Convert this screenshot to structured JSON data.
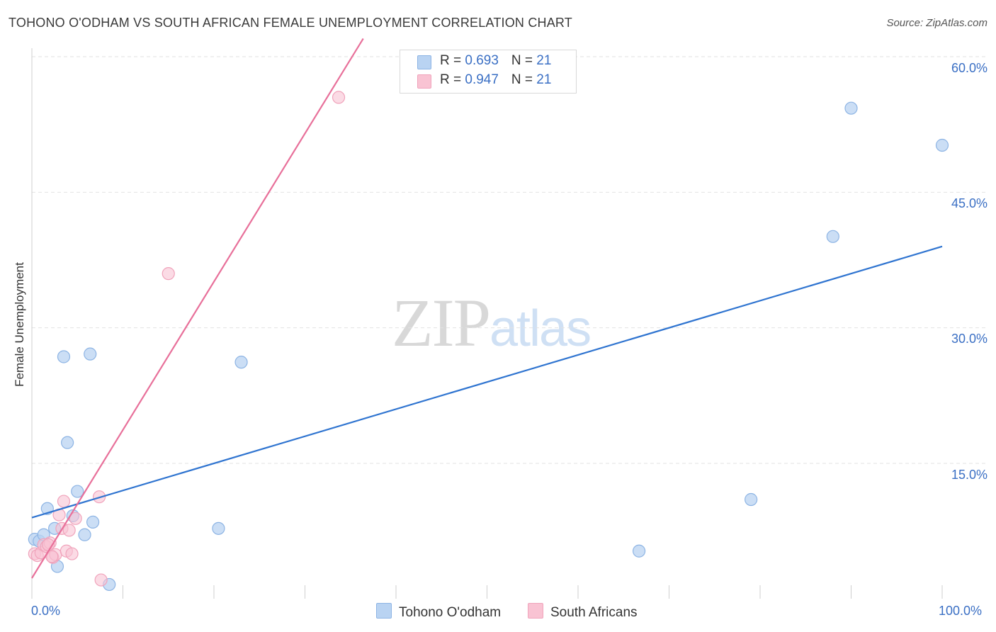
{
  "title": "TOHONO O'ODHAM VS SOUTH AFRICAN FEMALE UNEMPLOYMENT CORRELATION CHART",
  "source": "Source: ZipAtlas.com",
  "watermark": {
    "zip": "ZIP",
    "atlas": "atlas"
  },
  "colors": {
    "blue_fill": "#b9d3f2",
    "blue_stroke": "#8db4e4",
    "blue_line": "#2f74d0",
    "pink_fill": "#f9c3d3",
    "pink_stroke": "#f0a3bb",
    "pink_line": "#e8709a",
    "grid": "#e2e2e2",
    "axis_text": "#3a6fc4"
  },
  "legend": {
    "series1": {
      "r_label": "R = ",
      "r_value": "0.693",
      "n_label": "N = ",
      "n_value": "21"
    },
    "series2": {
      "r_label": "R = ",
      "r_value": "0.947",
      "n_label": "N = ",
      "n_value": "21"
    }
  },
  "chart_data": {
    "type": "scatter",
    "title": "TOHONO O'ODHAM VS SOUTH AFRICAN FEMALE UNEMPLOYMENT CORRELATION CHART",
    "xlabel": "",
    "ylabel": "Female Unemployment",
    "xlim": [
      0,
      100
    ],
    "ylim": [
      0,
      62
    ],
    "x_tick_labels": [
      "0.0%",
      "100.0%"
    ],
    "y_ticks": [
      15,
      30,
      45,
      60
    ],
    "y_tick_labels": [
      "15.0%",
      "30.0%",
      "45.0%",
      "60.0%"
    ],
    "legend_position": "bottom-center",
    "series": [
      {
        "name": "Tohono O'odham",
        "color": "#b9d3f2",
        "points": [
          [
            0.3,
            6.6
          ],
          [
            0.8,
            6.4
          ],
          [
            1.3,
            7.1
          ],
          [
            1.7,
            10.0
          ],
          [
            2.5,
            7.8
          ],
          [
            2.8,
            3.6
          ],
          [
            3.5,
            26.8
          ],
          [
            3.9,
            17.3
          ],
          [
            4.5,
            9.2
          ],
          [
            5.0,
            11.9
          ],
          [
            5.8,
            7.1
          ],
          [
            6.4,
            27.1
          ],
          [
            6.7,
            8.5
          ],
          [
            8.5,
            1.6
          ],
          [
            20.5,
            7.8
          ],
          [
            23.0,
            26.2
          ],
          [
            66.7,
            5.3
          ],
          [
            79.0,
            11.0
          ],
          [
            88.0,
            40.1
          ],
          [
            90.0,
            54.3
          ],
          [
            100.0,
            50.2
          ]
        ],
        "trend": {
          "x": [
            0,
            100
          ],
          "y": [
            9.0,
            39.0
          ]
        }
      },
      {
        "name": "South Africans",
        "color": "#f9c3d3",
        "points": [
          [
            0.3,
            5.0
          ],
          [
            0.6,
            4.8
          ],
          [
            1.0,
            5.1
          ],
          [
            1.3,
            6.0
          ],
          [
            1.6,
            5.8
          ],
          [
            2.0,
            6.2
          ],
          [
            2.3,
            4.6
          ],
          [
            2.6,
            4.9
          ],
          [
            3.0,
            9.3
          ],
          [
            3.3,
            7.8
          ],
          [
            3.5,
            10.8
          ],
          [
            3.8,
            5.3
          ],
          [
            4.1,
            7.6
          ],
          [
            4.4,
            5.0
          ],
          [
            4.8,
            8.9
          ],
          [
            7.4,
            11.3
          ],
          [
            7.6,
            2.1
          ],
          [
            15.0,
            36.0
          ],
          [
            33.7,
            55.5
          ],
          [
            1.8,
            6.0
          ],
          [
            2.2,
            4.7
          ]
        ],
        "trend": {
          "x": [
            0,
            36.4
          ],
          "y": [
            2.3,
            62.0
          ]
        }
      }
    ]
  }
}
